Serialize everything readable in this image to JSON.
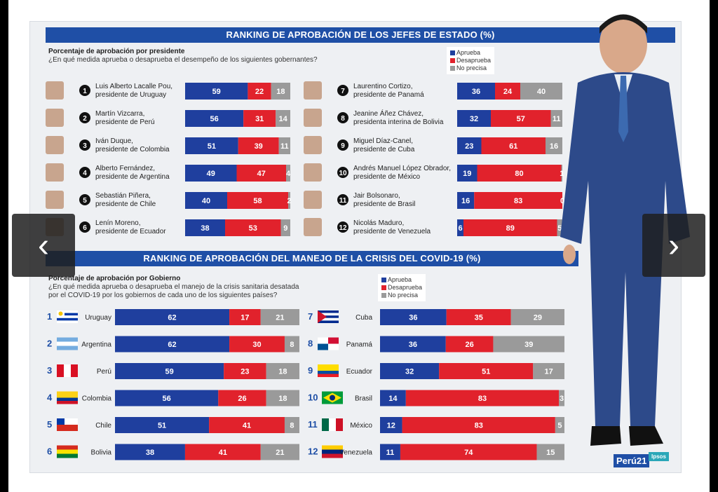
{
  "colors": {
    "aprueba": "#1f3f9e",
    "desaprueba": "#e1222c",
    "no_precisa": "#9a9a9a",
    "header": "#1f4fa6"
  },
  "legend": {
    "aprueba": "Aprueba",
    "desaprueba": "Desaprueba",
    "no_precisa": "No precisa"
  },
  "section1": {
    "title": "RANKING DE APROBACIÓN DE LOS JEFES DE ESTADO (%)",
    "subtitle": "Porcentaje de aprobación por presidente",
    "question": "¿En qué medida aprueba o desaprueba el desempeño de los siguientes gobernantes?"
  },
  "section2": {
    "title": "RANKING DE APROBACIÓN DEL MANEJO DE LA CRISIS DEL COVID-19 (%)",
    "subtitle": "Porcentaje de aprobación por Gobierno",
    "question_line1": "¿En qué medida aprueba o desaprueba el manejo de la crisis sanitaria desatada",
    "question_line2": "por el COVID-19 por los gobiernos de cada uno de los siguientes países?"
  },
  "chart_data": [
    {
      "type": "bar",
      "orientation": "horizontal-stacked",
      "title": "RANKING DE APROBACIÓN DE LOS JEFES DE ESTADO (%)",
      "series": [
        {
          "name": "Aprueba",
          "values": [
            59,
            56,
            51,
            49,
            40,
            38,
            36,
            32,
            23,
            19,
            16,
            6
          ]
        },
        {
          "name": "Desaprueba",
          "values": [
            22,
            31,
            39,
            47,
            58,
            53,
            24,
            57,
            61,
            80,
            83,
            89
          ]
        },
        {
          "name": "No precisa",
          "values": [
            18,
            14,
            11,
            4,
            2,
            9,
            40,
            11,
            16,
            1,
            0,
            5
          ]
        }
      ],
      "categories": [
        {
          "rank": "1",
          "name": "Luis Alberto Lacalle Pou,",
          "role": "presidente de Uruguay"
        },
        {
          "rank": "2",
          "name": "Martín Vizcarra,",
          "role": "presidente de Perú"
        },
        {
          "rank": "3",
          "name": "Iván Duque,",
          "role": "presidente de Colombia"
        },
        {
          "rank": "4",
          "name": "Alberto Fernández,",
          "role": "presidente de Argentina"
        },
        {
          "rank": "5",
          "name": "Sebastián Piñera,",
          "role": "presidente de Chile"
        },
        {
          "rank": "6",
          "name": "Lenín Moreno,",
          "role": "presidente de Ecuador"
        },
        {
          "rank": "7",
          "name": "Laurentino Cortizo,",
          "role": "presidente de Panamá"
        },
        {
          "rank": "8",
          "name": "Jeanine Áñez Chávez,",
          "role": "presidenta interina de Bolivia"
        },
        {
          "rank": "9",
          "name": "Miguel Díaz-Canel,",
          "role": "presidente de Cuba"
        },
        {
          "rank": "10",
          "name": "Andrés Manuel López Obrador,",
          "role": "presidente de México"
        },
        {
          "rank": "11",
          "name": "Jair Bolsonaro,",
          "role": "presidente de Brasil"
        },
        {
          "rank": "12",
          "name": "Nicolás Maduro,",
          "role": "presidente de Venezuela"
        }
      ]
    },
    {
      "type": "bar",
      "orientation": "horizontal-stacked",
      "title": "RANKING DE APROBACIÓN DEL MANEJO DE LA CRISIS DEL COVID-19 (%)",
      "series": [
        {
          "name": "Aprueba",
          "values": [
            62,
            62,
            59,
            56,
            51,
            38,
            36,
            36,
            32,
            14,
            12,
            11
          ]
        },
        {
          "name": "Desaprueba",
          "values": [
            17,
            30,
            23,
            26,
            41,
            41,
            35,
            26,
            51,
            83,
            83,
            74
          ]
        },
        {
          "name": "No precisa",
          "values": [
            21,
            8,
            18,
            18,
            8,
            21,
            29,
            39,
            17,
            3,
            5,
            15
          ]
        }
      ],
      "categories": [
        {
          "rank": "1",
          "country": "Uruguay",
          "flag": "uruguay"
        },
        {
          "rank": "2",
          "country": "Argentina",
          "flag": "argentina"
        },
        {
          "rank": "3",
          "country": "Perú",
          "flag": "peru"
        },
        {
          "rank": "4",
          "country": "Colombia",
          "flag": "colombia"
        },
        {
          "rank": "5",
          "country": "Chile",
          "flag": "chile"
        },
        {
          "rank": "6",
          "country": "Bolivia",
          "flag": "bolivia"
        },
        {
          "rank": "7",
          "country": "Cuba",
          "flag": "cuba"
        },
        {
          "rank": "8",
          "country": "Panamá",
          "flag": "panama"
        },
        {
          "rank": "9",
          "country": "Ecuador",
          "flag": "ecuador"
        },
        {
          "rank": "10",
          "country": "Brasil",
          "flag": "brasil"
        },
        {
          "rank": "11",
          "country": "México",
          "flag": "mexico"
        },
        {
          "rank": "12",
          "country": "Venezuela",
          "flag": "venezuela"
        }
      ]
    }
  ],
  "nav": {
    "prev_icon": "‹",
    "next_icon": "›"
  },
  "logos": {
    "peru21": "Perú21",
    "ipsos": "Ipsos"
  }
}
